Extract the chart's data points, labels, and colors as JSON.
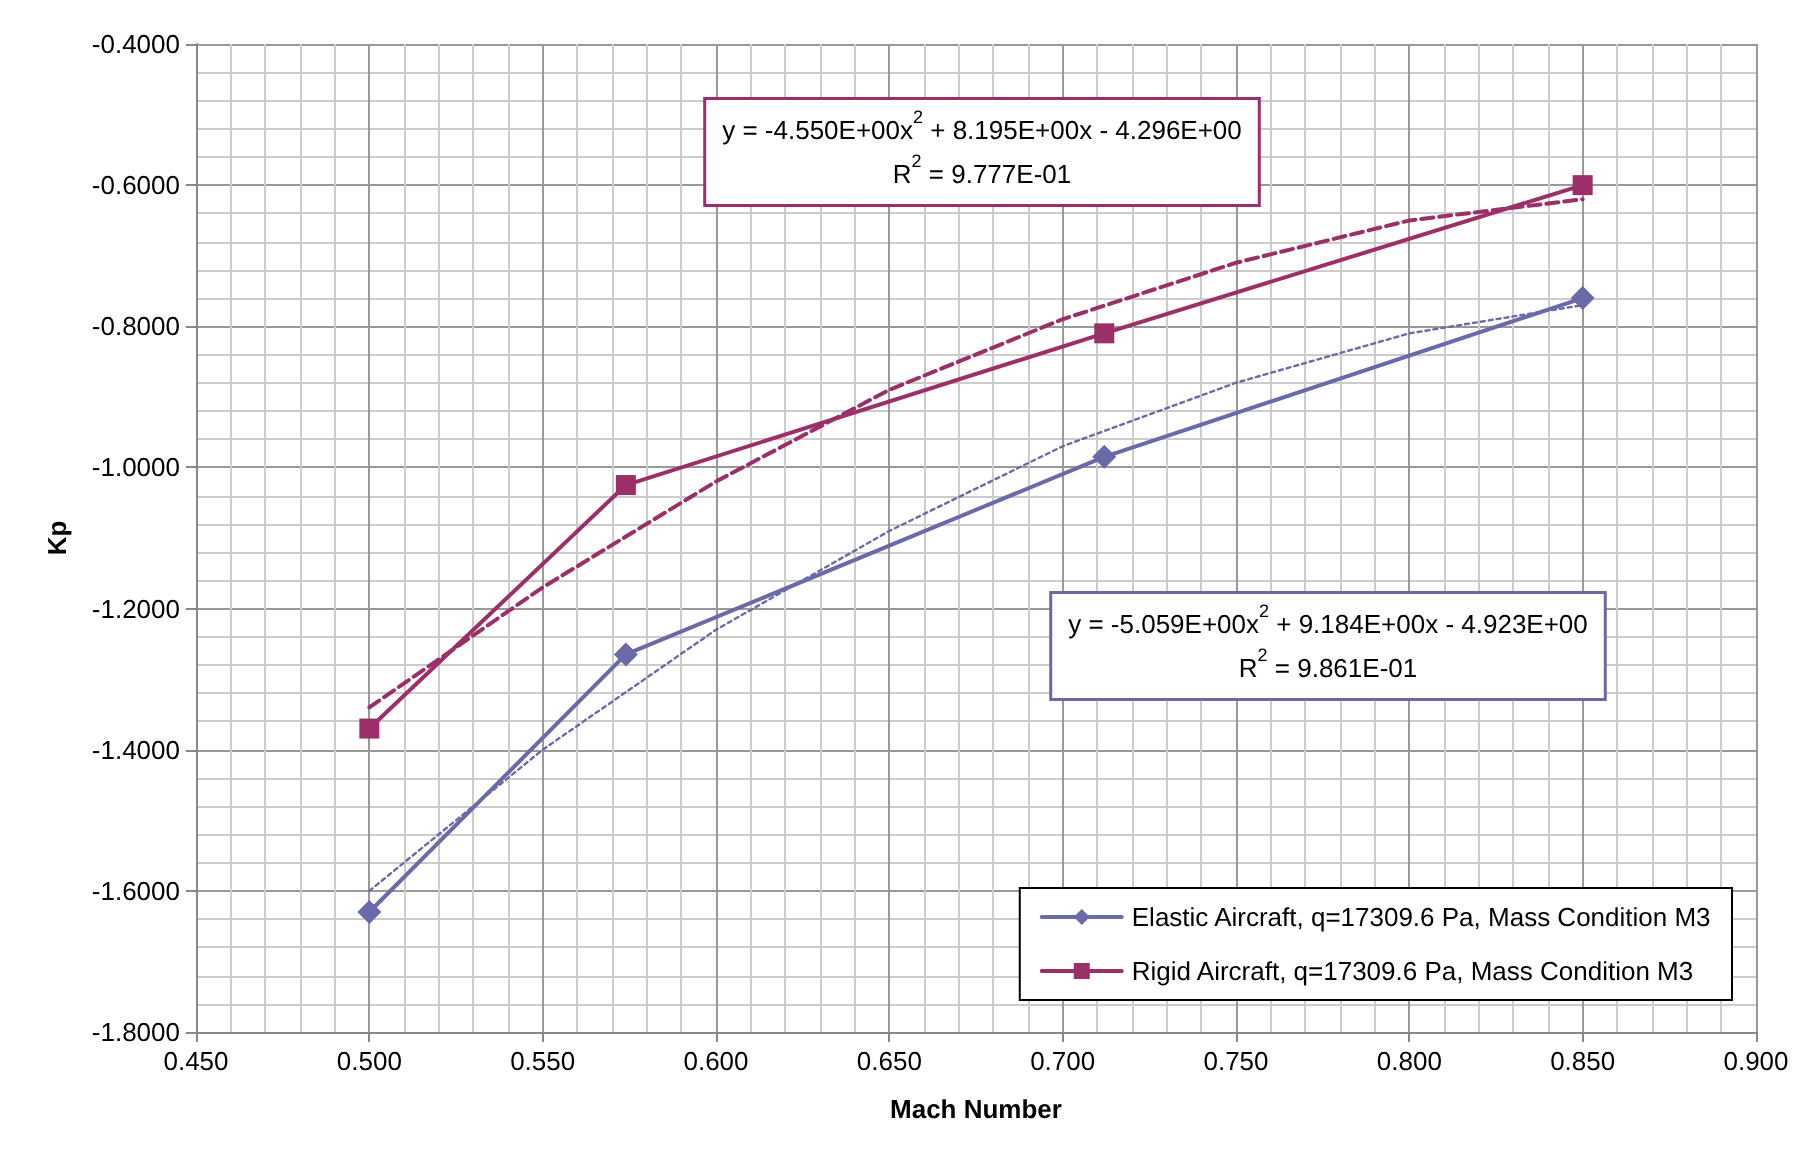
{
  "chart_data": {
    "type": "line",
    "xlabel": "Mach Number",
    "ylabel": "Kp",
    "xlim": [
      0.45,
      0.9
    ],
    "xticks": [
      {
        "value": 0.45,
        "label": "0.450"
      },
      {
        "value": 0.5,
        "label": "0.500"
      },
      {
        "value": 0.55,
        "label": "0.550"
      },
      {
        "value": 0.6,
        "label": "0.600"
      },
      {
        "value": 0.65,
        "label": "0.650"
      },
      {
        "value": 0.7,
        "label": "0.700"
      },
      {
        "value": 0.75,
        "label": "0.750"
      },
      {
        "value": 0.8,
        "label": "0.800"
      },
      {
        "value": 0.85,
        "label": "0.850"
      },
      {
        "value": 0.9,
        "label": "0.900"
      }
    ],
    "ylim": [
      -1.8,
      -0.4
    ],
    "yticks": [
      {
        "value": -1.8,
        "label": "-1.8000"
      },
      {
        "value": -1.6,
        "label": "-1.6000"
      },
      {
        "value": -1.4,
        "label": "-1.4000"
      },
      {
        "value": -1.2,
        "label": "-1.2000"
      },
      {
        "value": -1.0,
        "label": "-1.0000"
      },
      {
        "value": -0.8,
        "label": "-0.8000"
      },
      {
        "value": -0.6,
        "label": "-0.6000"
      },
      {
        "value": -0.4,
        "label": "-0.4000"
      }
    ],
    "grid": true,
    "legend": "bottom right",
    "series": [
      {
        "name": "Elastic Aircraft, q=17309.6 Pa, Mass Condition M3",
        "color": "#6a6aa8",
        "marker": "diamond",
        "line_style": "solid",
        "x": [
          0.5,
          0.574,
          0.712,
          0.85
        ],
        "values": [
          -1.63,
          -1.265,
          -0.985,
          -0.76
        ]
      },
      {
        "name": "Rigid Aircraft, q=17309.6 Pa, Mass Condition M3",
        "color": "#9c2f68",
        "marker": "square",
        "line_style": "solid",
        "x": [
          0.5,
          0.574,
          0.712,
          0.85
        ],
        "values": [
          -1.37,
          -1.025,
          -0.81,
          -0.6
        ]
      },
      {
        "color": "#6a6aa8",
        "marker": "none",
        "line_style": "dotted",
        "x": [
          0.5,
          0.55,
          0.6,
          0.65,
          0.7,
          0.75,
          0.8,
          0.85
        ],
        "values": [
          -1.6,
          -1.4,
          -1.23,
          -1.09,
          -0.97,
          -0.88,
          -0.81,
          -0.77
        ]
      },
      {
        "color": "#9c2f68",
        "marker": "none",
        "line_style": "dashed",
        "x": [
          0.5,
          0.55,
          0.6,
          0.65,
          0.7,
          0.75,
          0.8,
          0.85
        ],
        "values": [
          -1.34,
          -1.17,
          -1.02,
          -0.89,
          -0.79,
          -0.71,
          -0.65,
          -0.62
        ]
      }
    ],
    "annotations": [
      "y = -4.550E+00x$^{2}$ + 8.195E+00x - 4.296E+00\nR$^{2}$ = 9.777E-01",
      "y = -5.059E+00x$^{2}$ + 9.184E+00x - 4.923E+00\nR$^{2}$ = 9.861E-01"
    ]
  }
}
